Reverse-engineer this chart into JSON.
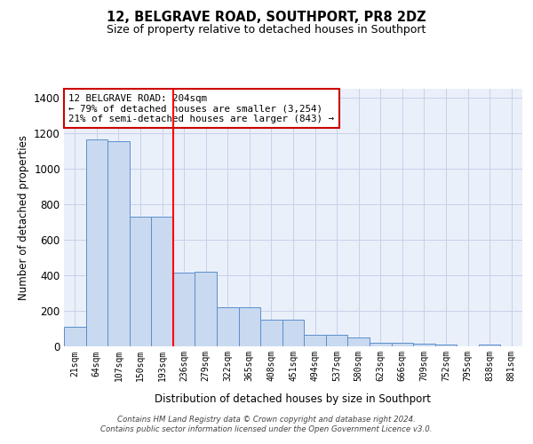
{
  "title": "12, BELGRAVE ROAD, SOUTHPORT, PR8 2DZ",
  "subtitle": "Size of property relative to detached houses in Southport",
  "xlabel": "Distribution of detached houses by size in Southport",
  "ylabel": "Number of detached properties",
  "categories": [
    "21sqm",
    "64sqm",
    "107sqm",
    "150sqm",
    "193sqm",
    "236sqm",
    "279sqm",
    "322sqm",
    "365sqm",
    "408sqm",
    "451sqm",
    "494sqm",
    "537sqm",
    "580sqm",
    "623sqm",
    "666sqm",
    "709sqm",
    "752sqm",
    "795sqm",
    "838sqm",
    "881sqm"
  ],
  "values": [
    110,
    1165,
    1155,
    730,
    730,
    415,
    420,
    220,
    220,
    150,
    150,
    65,
    65,
    48,
    20,
    20,
    15,
    12,
    0,
    12,
    0
  ],
  "bar_color": "#c9d9f0",
  "bar_edge_color": "#5b8fcc",
  "annotation_text": "12 BELGRAVE ROAD: 204sqm\n← 79% of detached houses are smaller (3,254)\n21% of semi-detached houses are larger (843) →",
  "annotation_box_color": "white",
  "annotation_box_edge": "#cc0000",
  "redline_x": 4.5,
  "ylim": [
    0,
    1450
  ],
  "yticks": [
    0,
    200,
    400,
    600,
    800,
    1000,
    1200,
    1400
  ],
  "footer": "Contains HM Land Registry data © Crown copyright and database right 2024.\nContains public sector information licensed under the Open Government Licence v3.0.",
  "bg_color": "#eaf0fa",
  "grid_color": "#c8d0e8",
  "figsize": [
    6.0,
    5.0
  ],
  "dpi": 100
}
